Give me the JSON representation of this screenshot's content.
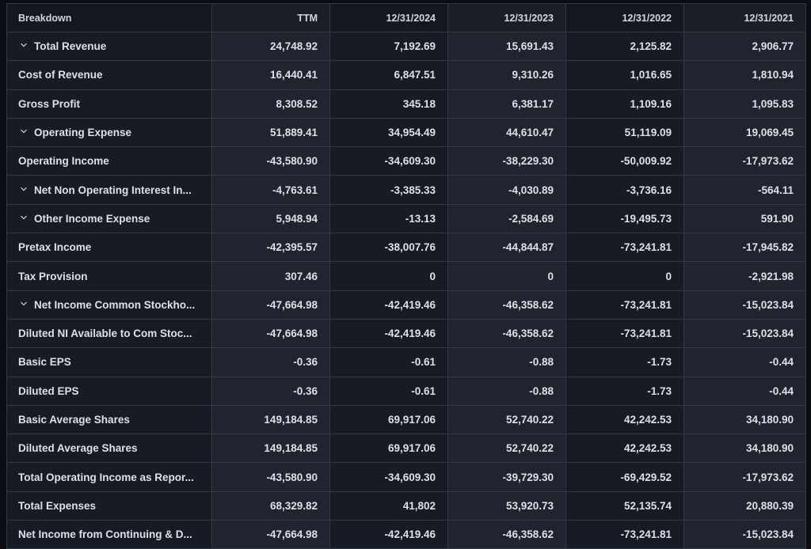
{
  "table": {
    "columns": [
      "Breakdown",
      "TTM",
      "12/31/2024",
      "12/31/2023",
      "12/31/2022",
      "12/31/2021"
    ],
    "rows": [
      {
        "label": "Total Revenue",
        "expandable": true,
        "values": [
          "24,748.92",
          "7,192.69",
          "15,691.43",
          "2,125.82",
          "2,906.77"
        ]
      },
      {
        "label": "Cost of Revenue",
        "expandable": false,
        "values": [
          "16,440.41",
          "6,847.51",
          "9,310.26",
          "1,016.65",
          "1,810.94"
        ]
      },
      {
        "label": "Gross Profit",
        "expandable": false,
        "values": [
          "8,308.52",
          "345.18",
          "6,381.17",
          "1,109.16",
          "1,095.83"
        ]
      },
      {
        "label": "Operating Expense",
        "expandable": true,
        "values": [
          "51,889.41",
          "34,954.49",
          "44,610.47",
          "51,119.09",
          "19,069.45"
        ]
      },
      {
        "label": "Operating Income",
        "expandable": false,
        "values": [
          "-43,580.90",
          "-34,609.30",
          "-38,229.30",
          "-50,009.92",
          "-17,973.62"
        ]
      },
      {
        "label": "Net Non Operating Interest In...",
        "expandable": true,
        "values": [
          "-4,763.61",
          "-3,385.33",
          "-4,030.89",
          "-3,736.16",
          "-564.11"
        ]
      },
      {
        "label": "Other Income Expense",
        "expandable": true,
        "values": [
          "5,948.94",
          "-13.13",
          "-2,584.69",
          "-19,495.73",
          "591.90"
        ]
      },
      {
        "label": "Pretax Income",
        "expandable": false,
        "values": [
          "-42,395.57",
          "-38,007.76",
          "-44,844.87",
          "-73,241.81",
          "-17,945.82"
        ]
      },
      {
        "label": "Tax Provision",
        "expandable": false,
        "values": [
          "307.46",
          "0",
          "0",
          "0",
          "-2,921.98"
        ]
      },
      {
        "label": "Net Income Common Stockho...",
        "expandable": true,
        "values": [
          "-47,664.98",
          "-42,419.46",
          "-46,358.62",
          "-73,241.81",
          "-15,023.84"
        ]
      },
      {
        "label": "Diluted NI Available to Com Stoc...",
        "expandable": false,
        "values": [
          "-47,664.98",
          "-42,419.46",
          "-46,358.62",
          "-73,241.81",
          "-15,023.84"
        ]
      },
      {
        "label": "Basic EPS",
        "expandable": false,
        "values": [
          "-0.36",
          "-0.61",
          "-0.88",
          "-1.73",
          "-0.44"
        ]
      },
      {
        "label": "Diluted EPS",
        "expandable": false,
        "values": [
          "-0.36",
          "-0.61",
          "-0.88",
          "-1.73",
          "-0.44"
        ]
      },
      {
        "label": "Basic Average Shares",
        "expandable": false,
        "values": [
          "149,184.85",
          "69,917.06",
          "52,740.22",
          "42,242.53",
          "34,180.90"
        ]
      },
      {
        "label": "Diluted Average Shares",
        "expandable": false,
        "values": [
          "149,184.85",
          "69,917.06",
          "52,740.22",
          "42,242.53",
          "34,180.90"
        ]
      },
      {
        "label": "Total Operating Income as Repor...",
        "expandable": false,
        "values": [
          "-43,580.90",
          "-34,609.30",
          "-39,729.30",
          "-69,429.52",
          "-17,973.62"
        ]
      },
      {
        "label": "Total Expenses",
        "expandable": false,
        "values": [
          "68,329.82",
          "41,802",
          "53,920.73",
          "52,135.74",
          "20,880.39"
        ]
      },
      {
        "label": "Net Income from Continuing & D...",
        "expandable": false,
        "values": [
          "-47,664.98",
          "-42,419.46",
          "-46,358.62",
          "-73,241.81",
          "-15,023.84"
        ]
      }
    ],
    "colors": {
      "page_bg": "#0b0d12",
      "cell_bg_dark": "#171b23",
      "cell_bg_light": "#1f242e",
      "header_bg_dark": "#14171e",
      "header_bg_light": "#1a1e27",
      "grid_line": "#323946",
      "text": "#dde0e4"
    }
  }
}
